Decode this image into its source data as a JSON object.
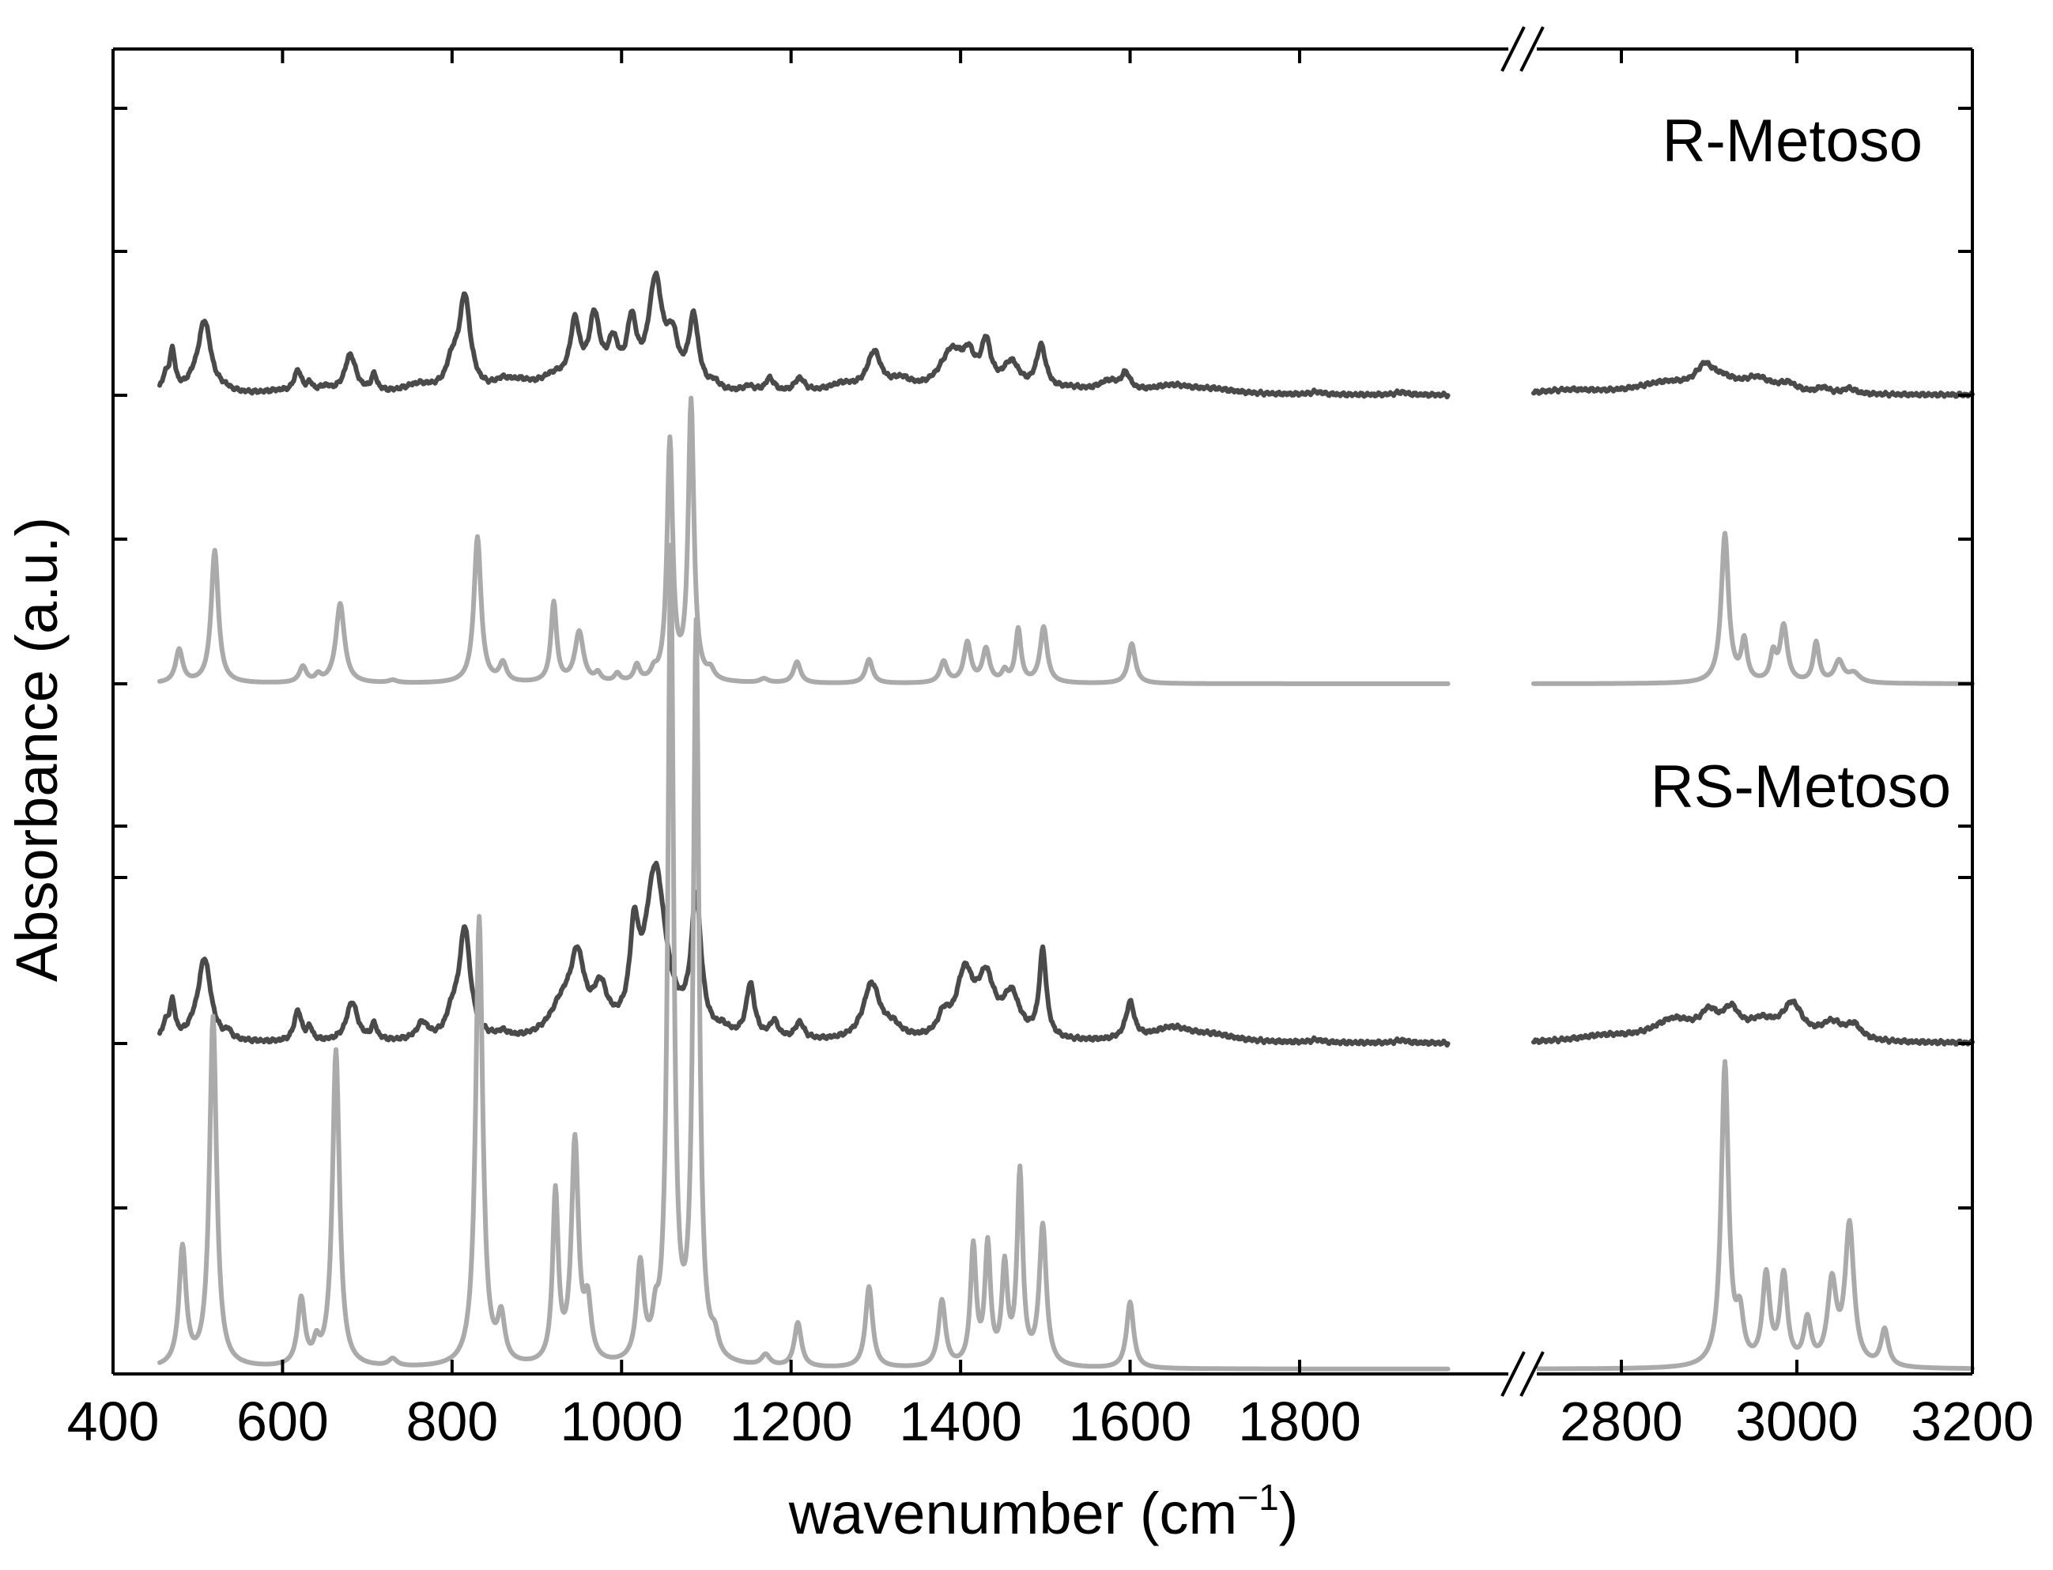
{
  "chart_data": {
    "type": "line",
    "title": "",
    "xlabel": "wavenumber (cm",
    "xlabel_superscript": "−1",
    "xlabel_close": ")",
    "ylabel": "Absorbance (a.u.)",
    "xlim": [
      400,
      3200
    ],
    "axis_break": {
      "from": 2050,
      "to": 2700
    },
    "x_tick_labels": [
      "400",
      "600",
      "800",
      "1000",
      "1200",
      "1400",
      "1600",
      "1800",
      "2800",
      "3000",
      "3200"
    ],
    "x_tick_values": [
      400,
      600,
      800,
      1000,
      1200,
      1400,
      1600,
      1800,
      2800,
      3000,
      3200
    ],
    "y_tick_labels_shown": false,
    "grid": false,
    "legend": "none",
    "panels": [
      {
        "label": "R-Metoso"
      },
      {
        "label": "RS-Metoso"
      }
    ],
    "series": [
      {
        "id": "r_exp",
        "style": "experimental",
        "color": "#4a4a4a",
        "baseline": 0,
        "noise": 0.008,
        "segments": [
          [
            455,
            1975
          ],
          [
            2700,
            3200
          ]
        ],
        "peaks": [
          [
            462,
            0.1,
            5
          ],
          [
            470,
            0.28,
            4
          ],
          [
            495,
            0.05,
            10
          ],
          [
            508,
            0.52,
            9
          ],
          [
            532,
            0.02,
            8
          ],
          [
            595,
            0.02,
            20
          ],
          [
            618,
            0.16,
            5
          ],
          [
            632,
            0.06,
            4
          ],
          [
            650,
            0.04,
            8
          ],
          [
            680,
            0.28,
            8
          ],
          [
            708,
            0.12,
            4
          ],
          [
            760,
            0.06,
            20
          ],
          [
            800,
            0.18,
            8
          ],
          [
            815,
            0.68,
            8
          ],
          [
            860,
            0.06,
            12
          ],
          [
            880,
            0.06,
            18
          ],
          [
            920,
            0.1,
            20
          ],
          [
            945,
            0.45,
            7
          ],
          [
            968,
            0.5,
            8
          ],
          [
            990,
            0.3,
            8
          ],
          [
            1012,
            0.45,
            7
          ],
          [
            1040,
            0.78,
            10
          ],
          [
            1060,
            0.32,
            8
          ],
          [
            1085,
            0.52,
            7
          ],
          [
            1110,
            0.05,
            6
          ],
          [
            1150,
            0.04,
            8
          ],
          [
            1175,
            0.1,
            6
          ],
          [
            1210,
            0.1,
            7
          ],
          [
            1260,
            0.06,
            20
          ],
          [
            1298,
            0.28,
            10
          ],
          [
            1330,
            0.08,
            15
          ],
          [
            1390,
            0.3,
            18
          ],
          [
            1410,
            0.18,
            8
          ],
          [
            1430,
            0.32,
            7
          ],
          [
            1460,
            0.2,
            12
          ],
          [
            1495,
            0.32,
            7
          ],
          [
            1530,
            0.03,
            20
          ],
          [
            1575,
            0.08,
            15
          ],
          [
            1595,
            0.12,
            6
          ],
          [
            1650,
            0.06,
            30
          ],
          [
            1700,
            0.03,
            30
          ],
          [
            1820,
            0.02,
            8
          ],
          [
            1920,
            0.02,
            8
          ],
          [
            2740,
            0.03,
            40
          ],
          [
            2850,
            0.08,
            40
          ],
          [
            2895,
            0.15,
            12
          ],
          [
            2915,
            0.08,
            20
          ],
          [
            2955,
            0.1,
            20
          ],
          [
            2990,
            0.06,
            12
          ],
          [
            3030,
            0.04,
            8
          ],
          [
            3060,
            0.04,
            8
          ]
        ]
      },
      {
        "id": "r_calc",
        "style": "calculated",
        "color": "#aaaaaa",
        "baseline": 0,
        "noise": 0,
        "segments": [
          [
            455,
            1975
          ],
          [
            2700,
            3200
          ]
        ],
        "peaks": [
          [
            478,
            0.25,
            5
          ],
          [
            520,
            1.0,
            5
          ],
          [
            624,
            0.12,
            5
          ],
          [
            642,
            0.05,
            4
          ],
          [
            668,
            0.6,
            6
          ],
          [
            730,
            0.02,
            6
          ],
          [
            830,
            1.1,
            5
          ],
          [
            860,
            0.14,
            5
          ],
          [
            920,
            0.6,
            4
          ],
          [
            950,
            0.38,
            6
          ],
          [
            972,
            0.06,
            4
          ],
          [
            995,
            0.06,
            4
          ],
          [
            1018,
            0.12,
            4
          ],
          [
            1038,
            0.06,
            4
          ],
          [
            1057,
            1.8,
            4
          ],
          [
            1082,
            2.1,
            4
          ],
          [
            1105,
            0.07,
            5
          ],
          [
            1168,
            0.03,
            6
          ],
          [
            1207,
            0.16,
            5
          ],
          [
            1292,
            0.18,
            5
          ],
          [
            1380,
            0.16,
            5
          ],
          [
            1408,
            0.3,
            5
          ],
          [
            1430,
            0.25,
            5
          ],
          [
            1452,
            0.08,
            4
          ],
          [
            1468,
            0.4,
            4
          ],
          [
            1498,
            0.42,
            5
          ],
          [
            1602,
            0.3,
            5
          ],
          [
            2918,
            1.12,
            5
          ],
          [
            2940,
            0.3,
            4
          ],
          [
            2973,
            0.2,
            4
          ],
          [
            2985,
            0.42,
            5
          ],
          [
            3022,
            0.3,
            4
          ],
          [
            3048,
            0.16,
            6
          ],
          [
            3065,
            0.07,
            8
          ]
        ]
      },
      {
        "id": "rs_exp",
        "style": "experimental",
        "color": "#4a4a4a",
        "baseline": 0,
        "noise": 0.008,
        "segments": [
          [
            455,
            1975
          ],
          [
            2700,
            3200
          ]
        ],
        "peaks": [
          [
            462,
            0.1,
            5
          ],
          [
            470,
            0.25,
            4
          ],
          [
            495,
            0.05,
            10
          ],
          [
            508,
            0.58,
            9
          ],
          [
            536,
            0.05,
            4
          ],
          [
            618,
            0.22,
            5
          ],
          [
            632,
            0.09,
            4
          ],
          [
            682,
            0.28,
            8
          ],
          [
            708,
            0.11,
            4
          ],
          [
            765,
            0.12,
            8
          ],
          [
            800,
            0.15,
            8
          ],
          [
            815,
            0.78,
            8
          ],
          [
            860,
            0.04,
            8
          ],
          [
            930,
            0.22,
            18
          ],
          [
            948,
            0.5,
            10
          ],
          [
            975,
            0.3,
            10
          ],
          [
            1015,
            0.6,
            6
          ],
          [
            1040,
            1.2,
            15
          ],
          [
            1088,
            0.95,
            7
          ],
          [
            1120,
            0.05,
            8
          ],
          [
            1152,
            0.38,
            6
          ],
          [
            1180,
            0.12,
            6
          ],
          [
            1210,
            0.12,
            6
          ],
          [
            1295,
            0.4,
            12
          ],
          [
            1320,
            0.08,
            12
          ],
          [
            1380,
            0.14,
            8
          ],
          [
            1405,
            0.45,
            12
          ],
          [
            1430,
            0.4,
            12
          ],
          [
            1460,
            0.3,
            12
          ],
          [
            1497,
            0.62,
            5
          ],
          [
            1600,
            0.26,
            6
          ],
          [
            1650,
            0.1,
            30
          ],
          [
            1700,
            0.04,
            30
          ],
          [
            1820,
            0.02,
            8
          ],
          [
            1920,
            0.02,
            8
          ],
          [
            2780,
            0.04,
            40
          ],
          [
            2860,
            0.15,
            30
          ],
          [
            2900,
            0.15,
            12
          ],
          [
            2925,
            0.18,
            12
          ],
          [
            2960,
            0.12,
            20
          ],
          [
            2995,
            0.24,
            14
          ],
          [
            3040,
            0.12,
            15
          ],
          [
            3065,
            0.1,
            10
          ]
        ]
      },
      {
        "id": "rs_calc",
        "style": "calculated",
        "color": "#aaaaaa",
        "baseline": 0,
        "noise": 0,
        "segments": [
          [
            455,
            1975
          ],
          [
            2700,
            3200
          ]
        ],
        "peaks": [
          [
            482,
            0.32,
            5
          ],
          [
            518,
            0.95,
            5
          ],
          [
            622,
            0.18,
            5
          ],
          [
            640,
            0.05,
            4
          ],
          [
            663,
            0.86,
            5
          ],
          [
            730,
            0.02,
            6
          ],
          [
            832,
            1.22,
            5
          ],
          [
            858,
            0.12,
            5
          ],
          [
            922,
            0.46,
            4
          ],
          [
            945,
            0.6,
            5
          ],
          [
            960,
            0.15,
            5
          ],
          [
            1022,
            0.26,
            5
          ],
          [
            1040,
            0.08,
            4
          ],
          [
            1058,
            2.19,
            4
          ],
          [
            1088,
            1.99,
            4
          ],
          [
            1110,
            0.05,
            5
          ],
          [
            1170,
            0.03,
            6
          ],
          [
            1208,
            0.12,
            5
          ],
          [
            1292,
            0.22,
            5
          ],
          [
            1378,
            0.18,
            5
          ],
          [
            1415,
            0.32,
            4
          ],
          [
            1432,
            0.32,
            4
          ],
          [
            1452,
            0.26,
            4
          ],
          [
            1470,
            0.52,
            4
          ],
          [
            1497,
            0.38,
            5
          ],
          [
            1600,
            0.18,
            5
          ],
          [
            2918,
            0.82,
            5
          ],
          [
            2935,
            0.12,
            5
          ],
          [
            2965,
            0.24,
            5
          ],
          [
            2985,
            0.24,
            5
          ],
          [
            3012,
            0.12,
            5
          ],
          [
            3040,
            0.22,
            6
          ],
          [
            3060,
            0.38,
            6
          ],
          [
            3100,
            0.1,
            5
          ]
        ]
      }
    ]
  }
}
